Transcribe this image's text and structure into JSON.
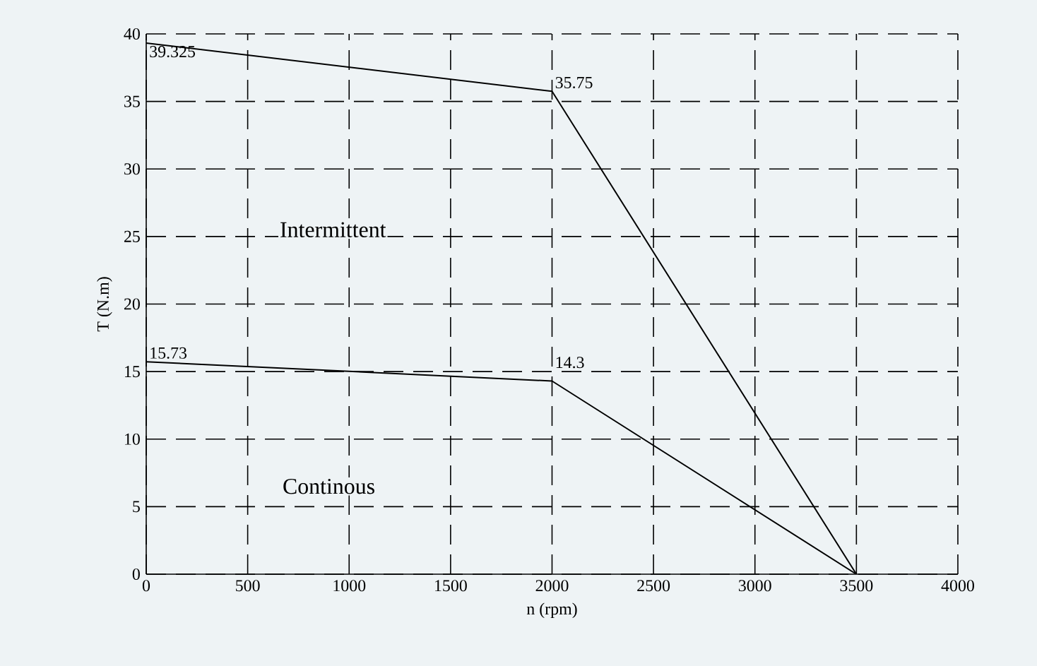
{
  "chart_data": {
    "type": "line",
    "xlabel": "n (rpm)",
    "ylabel": "T (N.m)",
    "x": [
      0,
      2000,
      3500
    ],
    "series": [
      {
        "color": "#000000",
        "values": [
          39.325,
          35.75,
          0
        ],
        "value_labels": [
          "39.325",
          "35.75",
          null
        ]
      },
      {
        "color": "#000000",
        "values": [
          15.73,
          14.3,
          0
        ],
        "value_labels": [
          "15.73",
          "14.3",
          null
        ]
      }
    ],
    "annotations": [
      "Intermittent",
      "Continous"
    ],
    "xlim": [
      0,
      4000
    ],
    "ylim": [
      0,
      40
    ],
    "xticks": [
      0,
      500,
      1000,
      1500,
      2000,
      2500,
      3000,
      3500,
      4000
    ],
    "yticks": [
      0,
      5,
      10,
      15,
      20,
      25,
      30,
      35,
      40
    ],
    "grid": true
  }
}
